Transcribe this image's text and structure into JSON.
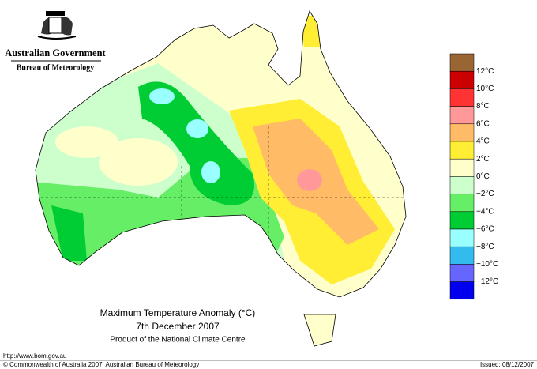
{
  "header": {
    "government": "Australian Government",
    "bureau": "Bureau of Meteorology"
  },
  "map": {
    "title": "Maximum Temperature Anomaly (°C)",
    "date": "7th December 2007",
    "product": "Product of the National Climate Centre"
  },
  "legend": {
    "colors": [
      "#996633",
      "#cc0000",
      "#ff3333",
      "#ff9999",
      "#ffbb66",
      "#ffee33",
      "#ffffcc",
      "#ccffcc",
      "#66ee66",
      "#00cc33",
      "#99ffff",
      "#33bbee",
      "#6666ff",
      "#0000ee"
    ],
    "labels": [
      "12°C",
      "10°C",
      "8°C",
      "6°C",
      "4°C",
      "2°C",
      "0°C",
      "−2°C",
      "−4°C",
      "−6°C",
      "−8°C",
      "−10°C",
      "−12°C"
    ]
  },
  "footer": {
    "url": "http://www.bom.gov.au",
    "copyright": "© Commonwealth of Australia 2007, Australian Bureau of Meteorology",
    "issued": "Issued: 08/12/2007"
  }
}
